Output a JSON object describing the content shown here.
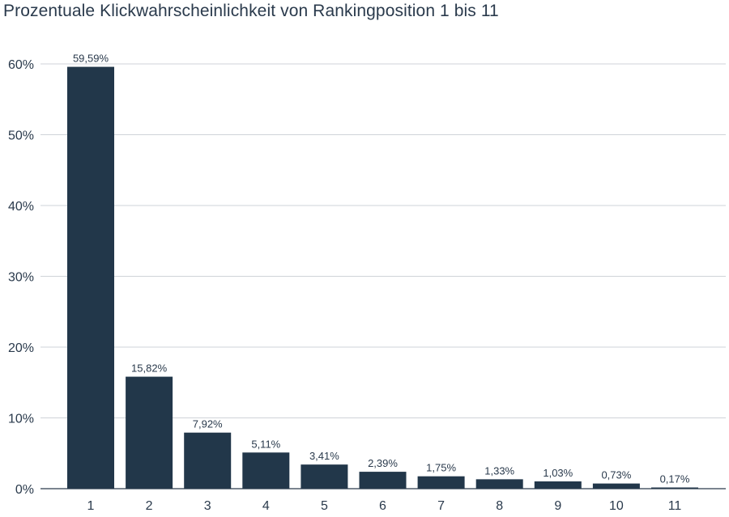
{
  "chart_data": {
    "type": "bar",
    "title": "Prozentuale Klickwahrscheinlichkeit von Rankingposition 1 bis 11",
    "xlabel": "",
    "ylabel": "",
    "categories": [
      "1",
      "2",
      "3",
      "4",
      "5",
      "6",
      "7",
      "8",
      "9",
      "10",
      "11"
    ],
    "values": [
      59.59,
      15.82,
      7.92,
      5.11,
      3.41,
      2.39,
      1.75,
      1.33,
      1.03,
      0.73,
      0.17
    ],
    "data_labels": [
      "59,59%",
      "15,82%",
      "7,92%",
      "5,11%",
      "3,41%",
      "2,39%",
      "1,75%",
      "1,33%",
      "1,03%",
      "0,73%",
      "0,17%"
    ],
    "ylim": [
      0,
      60
    ],
    "yticks": [
      0,
      10,
      20,
      30,
      40,
      50,
      60
    ],
    "ytick_labels": [
      "0%",
      "10%",
      "20%",
      "30%",
      "40%",
      "50%",
      "60%"
    ],
    "grid": true,
    "legend": "none",
    "colors": {
      "bar": "#22374a",
      "grid": "#cfd3d8",
      "axis": "#2a3a4c",
      "text": "#2a3a4c"
    }
  }
}
